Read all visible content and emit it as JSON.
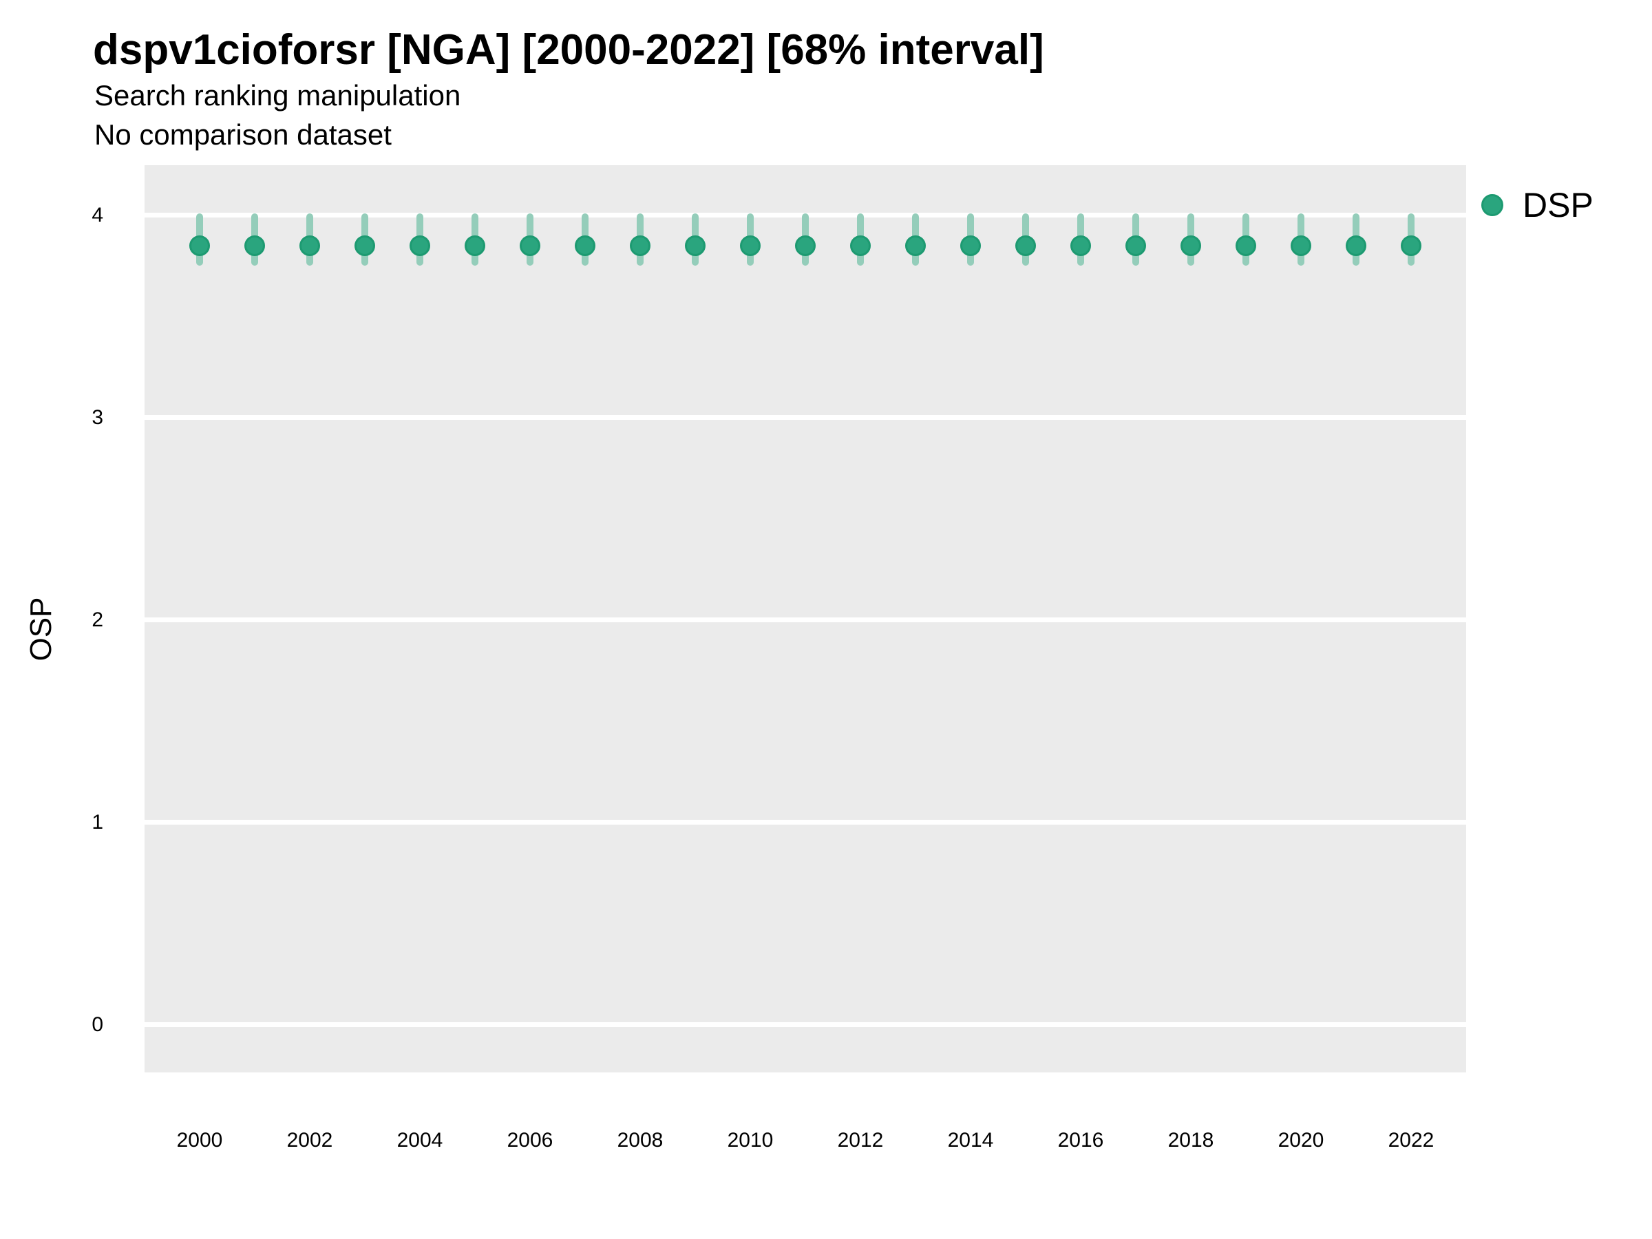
{
  "header": {
    "title": "dspv1cioforsr [NGA] [2000-2022] [68% interval]",
    "subtitle1": "Search ranking manipulation",
    "subtitle2": "No comparison dataset"
  },
  "y_axis": {
    "title": "OSP"
  },
  "legend": {
    "position": "right",
    "items": [
      {
        "label": "DSP",
        "color": "#2aa57e"
      }
    ]
  },
  "colors": {
    "panel_background": "#ebebeb",
    "gridline": "#ffffff",
    "point_fill": "#2aa57e",
    "point_stroke": "#1d9a71",
    "errorbar": "#94cdba",
    "text": "#000000"
  },
  "chart_data": {
    "type": "scatter",
    "title": "dspv1cioforsr [NGA] [2000-2022] [68% interval]",
    "subtitle": "Search ranking manipulation",
    "caption": "No comparison dataset",
    "xlabel": "",
    "ylabel": "OSP",
    "interval": "68%",
    "grid": true,
    "legend_position": "right",
    "xlim": [
      1999,
      2023
    ],
    "ylim": [
      -0.235,
      4.248
    ],
    "x_ticks": [
      2000,
      2002,
      2004,
      2006,
      2008,
      2010,
      2012,
      2014,
      2016,
      2018,
      2020,
      2022
    ],
    "y_ticks": [
      0,
      1,
      2,
      3,
      4
    ],
    "series": [
      {
        "name": "DSP",
        "color": "#2aa57e",
        "x": [
          2000,
          2001,
          2002,
          2003,
          2004,
          2005,
          2006,
          2007,
          2008,
          2009,
          2010,
          2011,
          2012,
          2013,
          2014,
          2015,
          2016,
          2017,
          2018,
          2019,
          2020,
          2021,
          2022
        ],
        "y": [
          3.85,
          3.85,
          3.85,
          3.85,
          3.85,
          3.85,
          3.85,
          3.85,
          3.85,
          3.85,
          3.85,
          3.85,
          3.85,
          3.85,
          3.85,
          3.85,
          3.85,
          3.85,
          3.85,
          3.85,
          3.85,
          3.85,
          3.85
        ],
        "y_lo": [
          3.75,
          3.75,
          3.75,
          3.75,
          3.75,
          3.75,
          3.75,
          3.75,
          3.75,
          3.75,
          3.75,
          3.75,
          3.75,
          3.75,
          3.75,
          3.75,
          3.75,
          3.75,
          3.75,
          3.75,
          3.75,
          3.75,
          3.75
        ],
        "y_hi": [
          4.01,
          4.01,
          4.01,
          4.01,
          4.01,
          4.01,
          4.01,
          4.01,
          4.01,
          4.01,
          4.01,
          4.01,
          4.01,
          4.01,
          4.01,
          4.01,
          4.01,
          4.01,
          4.01,
          4.01,
          4.01,
          4.01,
          4.01
        ]
      }
    ]
  }
}
